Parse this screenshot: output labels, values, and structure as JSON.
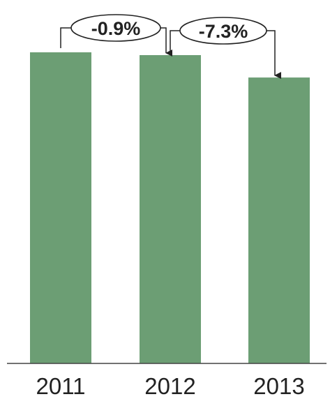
{
  "chart_data": {
    "type": "bar",
    "categories": [
      "2011",
      "2012",
      "2013"
    ],
    "values": [
      100,
      99.1,
      91.9
    ],
    "ylim": [
      0,
      100
    ],
    "bar_color": "#6c9e74",
    "axis_color": "#444444",
    "title": "",
    "xlabel": "",
    "ylabel": "",
    "annotations": [
      {
        "from": "2011",
        "to": "2012",
        "label": "-0.9%"
      },
      {
        "from": "2012",
        "to": "2013",
        "label": "-7.3%"
      }
    ]
  }
}
